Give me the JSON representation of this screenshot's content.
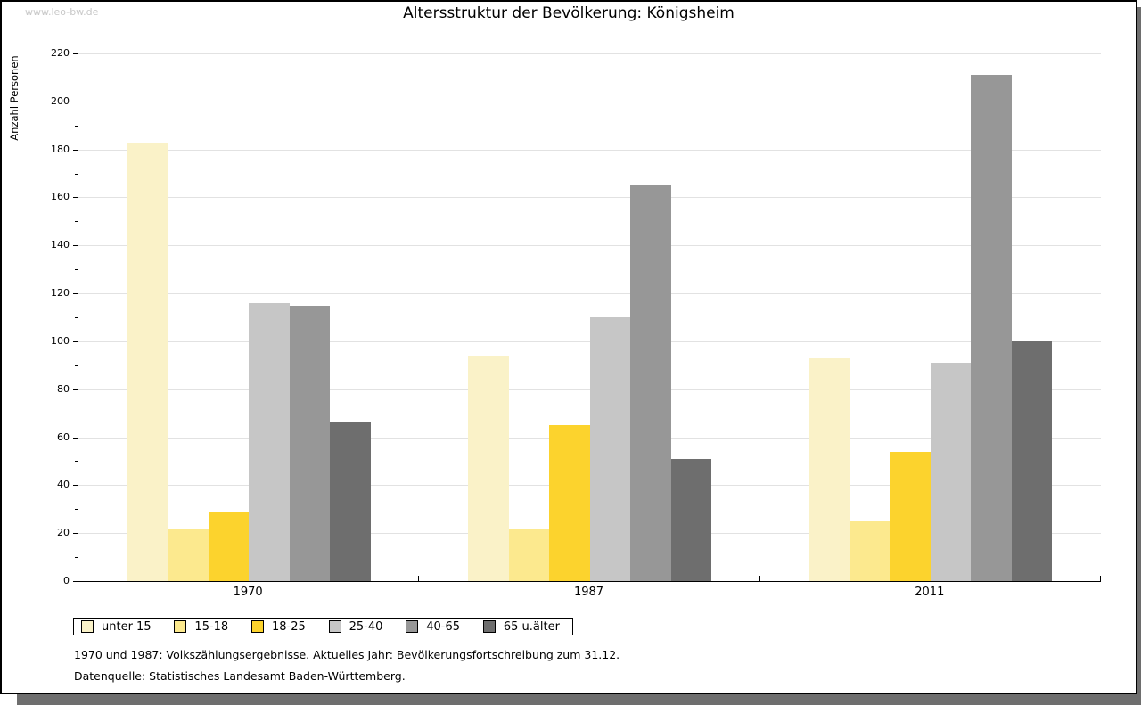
{
  "watermark": "www.leo-bw.de",
  "chart_data": {
    "type": "bar",
    "title": "Altersstruktur der Bevölkerung: Königsheim",
    "xlabel": "",
    "ylabel": "Anzahl Personen",
    "categories": [
      "1970",
      "1987",
      "2011"
    ],
    "series": [
      {
        "name": "unter 15",
        "color": "#faf2c8",
        "values": [
          183,
          94,
          93
        ]
      },
      {
        "name": "15-18",
        "color": "#fce98e",
        "values": [
          22,
          22,
          25
        ]
      },
      {
        "name": "18-25",
        "color": "#fcd32d",
        "values": [
          29,
          65,
          54
        ]
      },
      {
        "name": "25-40",
        "color": "#c6c6c6",
        "values": [
          116,
          110,
          91
        ]
      },
      {
        "name": "40-65",
        "color": "#979797",
        "values": [
          115,
          165,
          211
        ]
      },
      {
        "name": "65 u.älter",
        "color": "#6e6e6e",
        "values": [
          66,
          51,
          100
        ]
      }
    ],
    "ylim": [
      0,
      220
    ],
    "yticks": [
      0,
      20,
      40,
      60,
      80,
      100,
      120,
      140,
      160,
      180,
      200,
      220
    ],
    "yminor_step": 10,
    "grid": true,
    "legend_position": "bottom-left"
  },
  "footnotes": [
    "1970 und 1987: Volkszählungsergebnisse. Aktuelles Jahr: Bevölkerungsfortschreibung zum 31.12.",
    "Datenquelle: Statistisches Landesamt Baden-Württemberg."
  ]
}
